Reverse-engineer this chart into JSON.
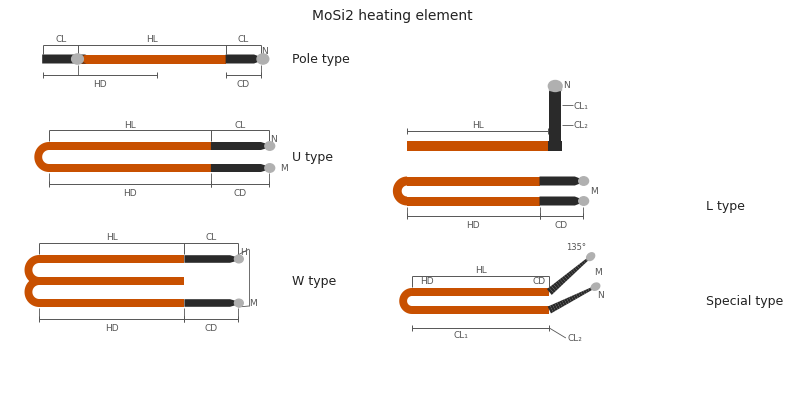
{
  "title": "MoSi2 heating element",
  "title_fontsize": 10,
  "bg_color": "#ffffff",
  "orange": "#C85000",
  "dark_gray": "#2a2a2a",
  "light_gray": "#b0b0b0",
  "mid_gray": "#555555",
  "dim_color": "#555555",
  "types": [
    "Pole type",
    "U type",
    "W type",
    "L type",
    "Special type"
  ],
  "label_fontsize": 6.5,
  "type_fontsize": 9
}
